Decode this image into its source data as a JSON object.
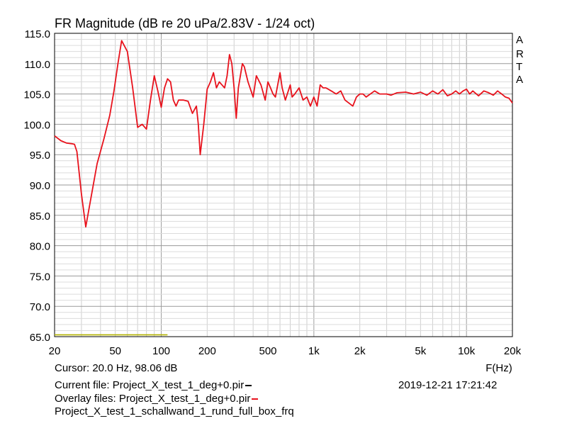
{
  "chart_data": {
    "type": "line",
    "title": "FR Magnitude (dB re 20 uPa/2.83V - 1/24 oct)",
    "xlabel": "F(Hz)",
    "ylabel": "",
    "xscale": "log",
    "xlim": [
      20,
      20000
    ],
    "ylim": [
      65,
      115
    ],
    "grid": true,
    "xticks": [
      20,
      50,
      100,
      200,
      500,
      1000,
      2000,
      5000,
      10000,
      20000
    ],
    "xtick_labels": [
      "20",
      "50",
      "100",
      "200",
      "500",
      "1k",
      "2k",
      "5k",
      "10k",
      "20k"
    ],
    "yticks": [
      65,
      70,
      75,
      80,
      85,
      90,
      95,
      100,
      105,
      110,
      115
    ],
    "ytick_labels": [
      "65.0",
      "70.0",
      "75.0",
      "80.0",
      "85.0",
      "90.0",
      "95.0",
      "100.0",
      "105.0",
      "110.0",
      "115.0"
    ],
    "series": [
      {
        "color": "#e8121c",
        "x": [
          20,
          22,
          24,
          26,
          27,
          28,
          30,
          32,
          35,
          38,
          42,
          46,
          49,
          52,
          55,
          60,
          65,
          70,
          75,
          80,
          85,
          90,
          95,
          100,
          105,
          110,
          115,
          120,
          125,
          130,
          140,
          150,
          160,
          170,
          175,
          180,
          190,
          200,
          210,
          220,
          230,
          240,
          250,
          260,
          270,
          280,
          290,
          300,
          310,
          320,
          340,
          350,
          370,
          400,
          420,
          450,
          480,
          500,
          520,
          540,
          560,
          600,
          620,
          650,
          700,
          720,
          750,
          800,
          850,
          900,
          950,
          1000,
          1050,
          1100,
          1150,
          1200,
          1300,
          1400,
          1500,
          1600,
          1800,
          1900,
          2000,
          2100,
          2200,
          2500,
          2700,
          3000,
          3200,
          3500,
          4000,
          4500,
          5000,
          5500,
          6000,
          6500,
          7000,
          7500,
          8000,
          8500,
          9000,
          9500,
          10000,
          10500,
          11000,
          12000,
          13000,
          14000,
          15000,
          16000,
          17000,
          18000,
          19000,
          20000
        ],
        "y": [
          98.1,
          97.3,
          96.9,
          96.8,
          96.7,
          95.5,
          88.5,
          83.1,
          88.5,
          93.5,
          97.5,
          101.5,
          105.5,
          110.0,
          113.8,
          112.0,
          106.0,
          99.5,
          100.0,
          99.2,
          104.0,
          108.0,
          105.5,
          102.8,
          106.0,
          107.5,
          107.0,
          104.0,
          103.0,
          104.0,
          104.0,
          103.8,
          101.8,
          103.0,
          100.0,
          95.0,
          100.0,
          105.8,
          107.0,
          108.5,
          106.0,
          107.0,
          106.5,
          106.0,
          108.0,
          111.5,
          110.0,
          106.0,
          101.0,
          106.0,
          110.0,
          109.5,
          107.0,
          104.5,
          108.0,
          106.5,
          104.0,
          107.0,
          106.0,
          105.0,
          104.5,
          108.5,
          106.0,
          104.0,
          106.5,
          104.5,
          105.0,
          106.0,
          104.0,
          104.5,
          103.0,
          104.5,
          103.0,
          106.5,
          106.0,
          106.0,
          105.5,
          105.0,
          105.5,
          104.0,
          103.0,
          104.5,
          105.0,
          105.0,
          104.5,
          105.5,
          105.0,
          105.0,
          104.8,
          105.2,
          105.3,
          105.0,
          105.3,
          104.8,
          105.5,
          105.0,
          105.7,
          104.7,
          105.0,
          105.5,
          105.0,
          105.5,
          105.8,
          105.0,
          105.5,
          104.7,
          105.5,
          105.2,
          104.8,
          105.5,
          105.0,
          104.5,
          104.3,
          103.5
        ]
      },
      {
        "color": "#b3b300",
        "x": [
          20,
          110
        ],
        "y": [
          65.3,
          65.3
        ]
      }
    ]
  },
  "brand_letters": [
    "A",
    "R",
    "T",
    "A"
  ],
  "footer": {
    "cursor": "Cursor: 20.0 Hz, 98.06 dB",
    "current_file": "Current file: Project_X_test_1_deg+0.pir",
    "overlay_files": "Overlay files: Project_X_test_1_deg+0.pir",
    "overlay_file_2": "Project_X_test_1_schallwand_1_rund_full_box_frq",
    "timestamp": "2019-12-21  17:21:42",
    "current_color": "#000000",
    "overlay_color": "#e8121c"
  }
}
